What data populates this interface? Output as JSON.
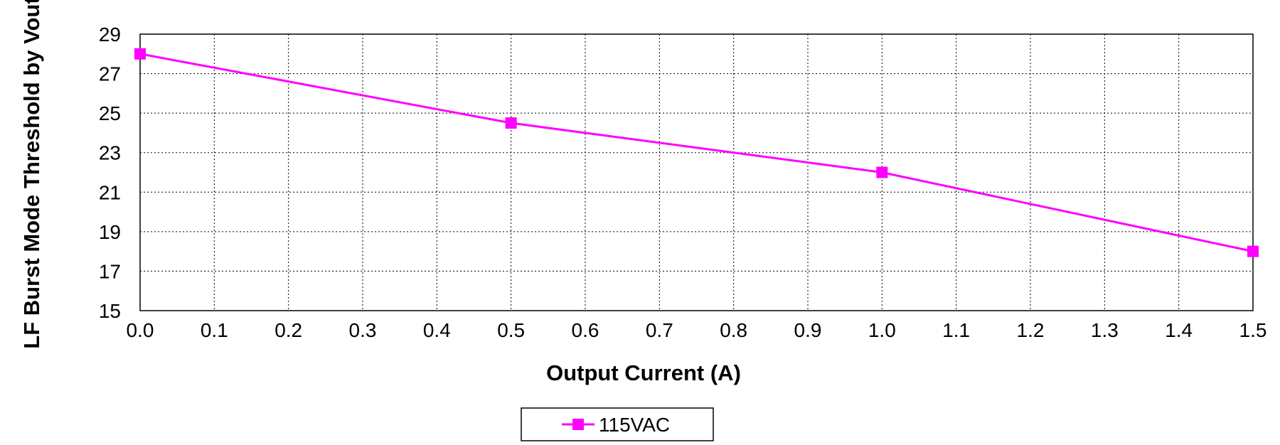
{
  "chart_data": {
    "type": "line",
    "xlabel": "Output Current (A)",
    "ylabel": "LF Burst Mode Threshold by Vout",
    "xlim": [
      0,
      1.5
    ],
    "ylim": [
      15,
      29
    ],
    "x_ticks": [
      "0.0",
      "0.1",
      "0.2",
      "0.3",
      "0.4",
      "0.5",
      "0.6",
      "0.7",
      "0.8",
      "0.9",
      "1.0",
      "1.1",
      "1.2",
      "1.3",
      "1.4",
      "1.5"
    ],
    "y_ticks": [
      "15",
      "17",
      "19",
      "21",
      "23",
      "25",
      "27",
      "29"
    ],
    "grid": true,
    "grid_style": "dotted",
    "legend_position": "bottom-center",
    "series": [
      {
        "name": "115VAC",
        "color": "#ff00ff",
        "marker": "square",
        "x": [
          0.0,
          0.5,
          1.0,
          1.5
        ],
        "y": [
          28.0,
          24.5,
          22.0,
          18.0
        ]
      }
    ]
  }
}
